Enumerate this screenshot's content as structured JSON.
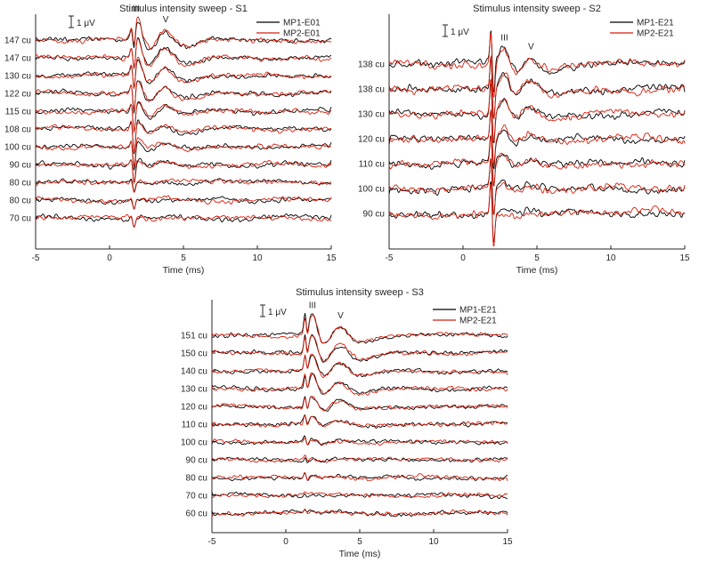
{
  "figure": {
    "bg": "#ffffff",
    "axis_color": "#262626",
    "text_color": "#262626"
  },
  "chart_data": [
    {
      "type": "line",
      "title": "Stimulus intensity sweep - S1",
      "xlabel": "Time (ms)",
      "x_ticks": [
        -5,
        0,
        5,
        10,
        15
      ],
      "x_range": [
        -5,
        15
      ],
      "scale_bar": "1 μV",
      "wave_labels": [
        {
          "text": "III",
          "t": 1.8
        },
        {
          "text": "V",
          "t": 3.8
        }
      ],
      "legend": [
        {
          "label": "MP1-E01",
          "color": "#000000"
        },
        {
          "label": "MP2-E01",
          "color": "#d81e0c"
        }
      ],
      "intensities": [
        "147 cu",
        "147 cu",
        "130 cu",
        "122 cu",
        "115 cu",
        "108 cu",
        "100 cu",
        "90 cu",
        "80 cu",
        "80 cu",
        "70 cu"
      ],
      "response_scale": [
        1.0,
        0.95,
        0.8,
        0.65,
        0.5,
        0.4,
        0.3,
        0.2,
        0.12,
        0.1,
        0.06
      ],
      "resp_peak_uv": 1.9,
      "iii_t": 1.9,
      "v_t": 3.8,
      "artifact": {
        "t": 1.5,
        "up": 0.6,
        "down": 2.4,
        "scale": [
          0.8,
          0.9,
          1.0,
          1.1,
          1.1,
          1.1,
          1.0,
          0.8,
          0.5,
          0.4,
          0.35
        ]
      },
      "noise_uv": 0.13
    },
    {
      "type": "line",
      "title": "Stimulus intensity sweep - S2",
      "xlabel": "Time (ms)",
      "x_ticks": [
        -5,
        0,
        5,
        10,
        15
      ],
      "x_range": [
        -5,
        15
      ],
      "scale_bar": "1 μV",
      "wave_labels": [
        {
          "text": "III",
          "t": 2.8
        },
        {
          "text": "V",
          "t": 4.6
        }
      ],
      "legend": [
        {
          "label": "MP1-E21",
          "color": "#000000"
        },
        {
          "label": "MP2-E21",
          "color": "#d81e0c"
        }
      ],
      "intensities": [
        "138 cu",
        "138 cu",
        "130 cu",
        "120 cu",
        "110 cu",
        "100 cu",
        "90 cu"
      ],
      "response_scale": [
        1.0,
        0.9,
        0.75,
        0.55,
        0.4,
        0.25,
        0.12
      ],
      "resp_peak_uv": 1.5,
      "iii_t": 2.8,
      "v_t": 4.6,
      "artifact": {
        "t": 1.9,
        "up": 3.4,
        "down": 3.0,
        "scale": [
          1.0,
          1.0,
          1.0,
          0.95,
          0.8,
          0.9,
          1.0
        ]
      },
      "noise_uv": 0.2
    },
    {
      "type": "line",
      "title": "Stimulus intensity sweep - S3",
      "xlabel": "Time (ms)",
      "x_ticks": [
        -5,
        0,
        5,
        10,
        15
      ],
      "x_range": [
        -5,
        15
      ],
      "scale_bar": "1 μV",
      "wave_labels": [
        {
          "text": "III",
          "t": 1.8
        },
        {
          "text": "V",
          "t": 3.7
        }
      ],
      "legend": [
        {
          "label": "MP1-E21",
          "color": "#000000"
        },
        {
          "label": "MP2-E21",
          "color": "#d81e0c"
        }
      ],
      "intensities": [
        "151 cu",
        "150 cu",
        "140 cu",
        "130 cu",
        "120 cu",
        "110 cu",
        "100 cu",
        "90 cu",
        "80 cu",
        "70 cu",
        "60 cu"
      ],
      "response_scale": [
        1.0,
        0.95,
        0.8,
        0.65,
        0.5,
        0.32,
        0.14,
        0.08,
        0.06,
        0.05,
        0.04
      ],
      "resp_peak_uv": 1.8,
      "iii_t": 1.8,
      "v_t": 3.7,
      "artifact": {
        "t": 1.3,
        "up": 1.5,
        "down": 1.0,
        "scale": [
          0.9,
          0.9,
          0.8,
          0.7,
          0.6,
          0.5,
          0.35,
          0.3,
          0.25,
          0.2,
          0.15
        ]
      },
      "noise_uv": 0.11
    }
  ]
}
